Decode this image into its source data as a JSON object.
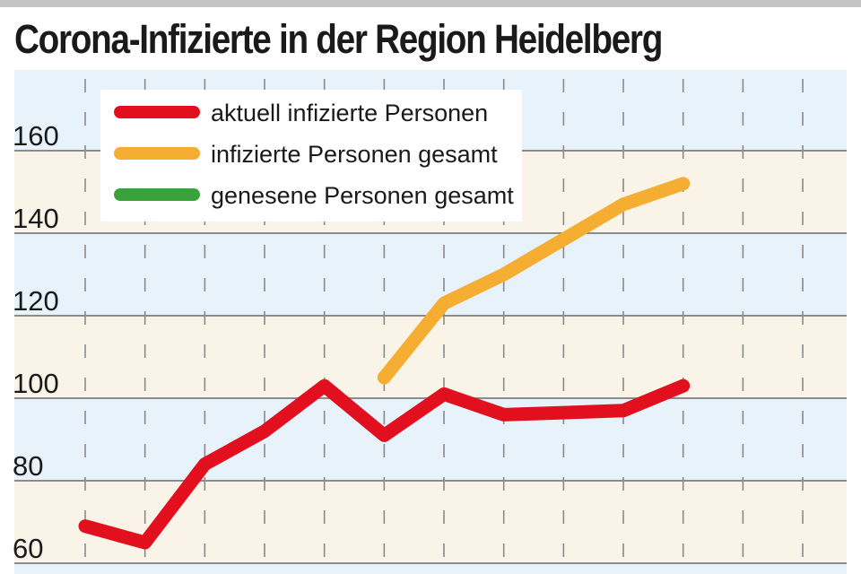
{
  "title": "Corona-Infizierte in der Region Heidelberg",
  "chart_data": {
    "type": "line",
    "title": "Corona-Infizierte in der Region Heidelberg",
    "xlabel": "",
    "ylabel": "",
    "ylim": [
      60,
      180
    ],
    "yticks": [
      60,
      80,
      100,
      120,
      140,
      160
    ],
    "ytick_labels": [
      "60",
      "80",
      "100",
      "120",
      "140",
      "160"
    ],
    "x": [
      1,
      2,
      3,
      4,
      5,
      6,
      7,
      8,
      9,
      10,
      11,
      12,
      13
    ],
    "xlim": [
      0.5,
      13.5
    ],
    "grid": true,
    "legend_position": "top-left",
    "series": [
      {
        "name": "aktuell infizierte Personen",
        "color": "#e2101e",
        "values": [
          69,
          65,
          84,
          92,
          103,
          91,
          101,
          96,
          96.5,
          97,
          103,
          null,
          null
        ]
      },
      {
        "name": "infizierte Personen gesamt",
        "color": "#f5ad32",
        "values": [
          null,
          null,
          null,
          null,
          null,
          105,
          123,
          130,
          138.5,
          147,
          152,
          null,
          null
        ]
      },
      {
        "name": "genesene Personen gesamt",
        "color": "#3aa23a",
        "values": [
          null,
          null,
          null,
          null,
          null,
          null,
          null,
          null,
          null,
          null,
          null,
          null,
          null
        ]
      }
    ],
    "band_colors": [
      "#e7f2fa",
      "#faf4e8"
    ]
  }
}
